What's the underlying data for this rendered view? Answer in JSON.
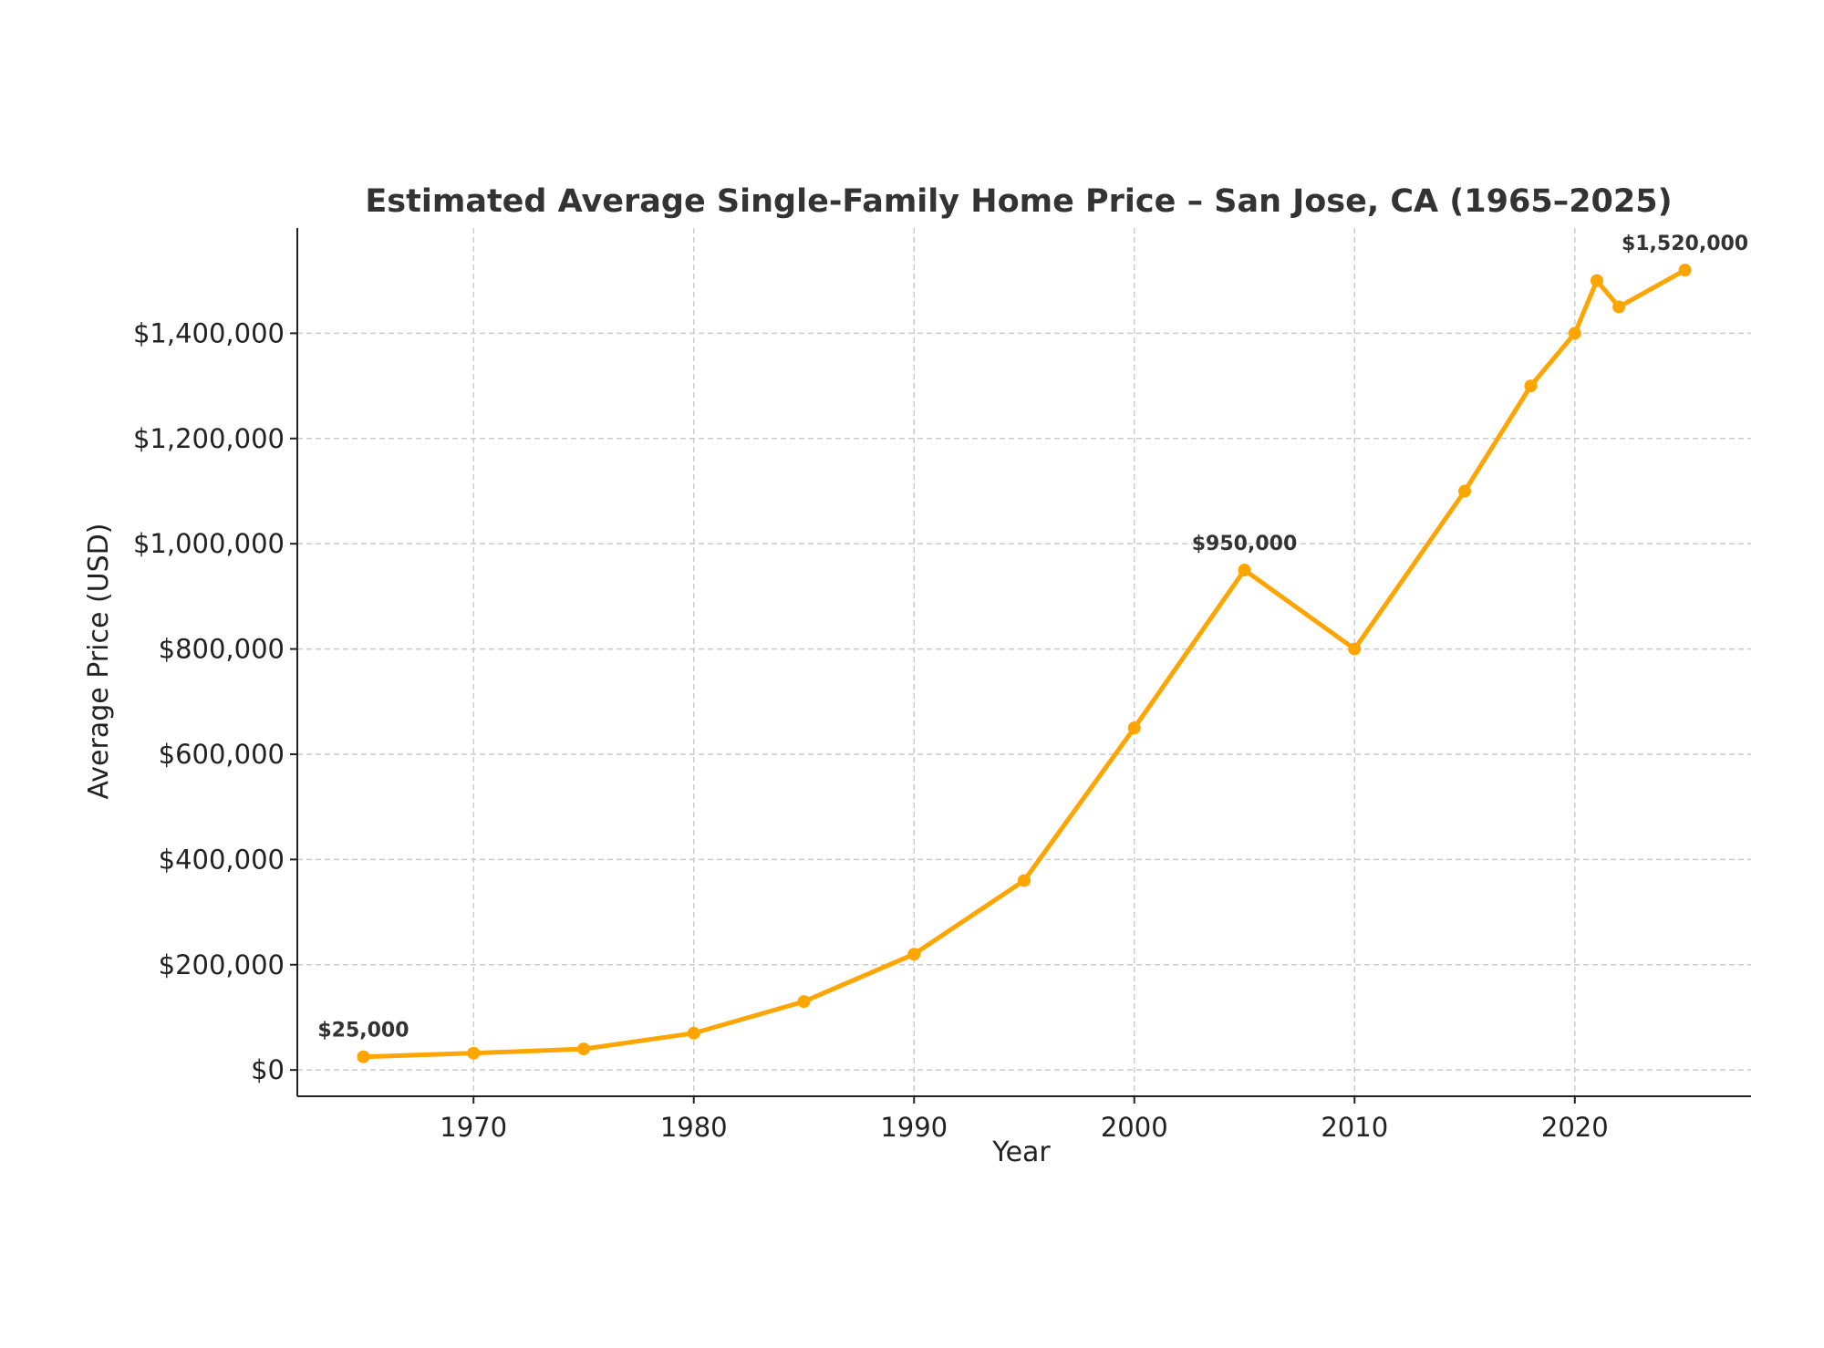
{
  "chart_data": {
    "type": "line",
    "title": "Estimated Average Single-Family Home Price – San Jose, CA (1965–2025)",
    "xlabel": "Year",
    "ylabel": "Average Price (USD)",
    "xlim": [
      1962,
      2028
    ],
    "ylim": [
      -50000,
      1600000
    ],
    "x_ticks": [
      1970,
      1980,
      1990,
      2000,
      2010,
      2020
    ],
    "x_tick_labels": [
      "1970",
      "1980",
      "1990",
      "2000",
      "2010",
      "2020"
    ],
    "y_ticks": [
      0,
      200000,
      400000,
      600000,
      800000,
      1000000,
      1200000,
      1400000
    ],
    "y_tick_labels": [
      "$0",
      "$200,000",
      "$400,000",
      "$600,000",
      "$800,000",
      "$1,000,000",
      "$1,200,000",
      "$1,400,000"
    ],
    "grid": true,
    "series": [
      {
        "color": "#FFA500",
        "x": [
          1965,
          1970,
          1975,
          1980,
          1985,
          1990,
          1995,
          2000,
          2005,
          2010,
          2015,
          2018,
          2020,
          2021,
          2022,
          2025
        ],
        "values": [
          25000,
          32000,
          40000,
          70000,
          130000,
          220000,
          360000,
          650000,
          950000,
          800000,
          1100000,
          1300000,
          1400000,
          1500000,
          1450000,
          1520000
        ]
      }
    ],
    "annotations": [
      {
        "x": 1965,
        "y": 25000,
        "text": "$25,000"
      },
      {
        "x": 2005,
        "y": 950000,
        "text": "$950,000"
      },
      {
        "x": 2025,
        "y": 1520000,
        "text": "$1,520,000"
      }
    ]
  }
}
